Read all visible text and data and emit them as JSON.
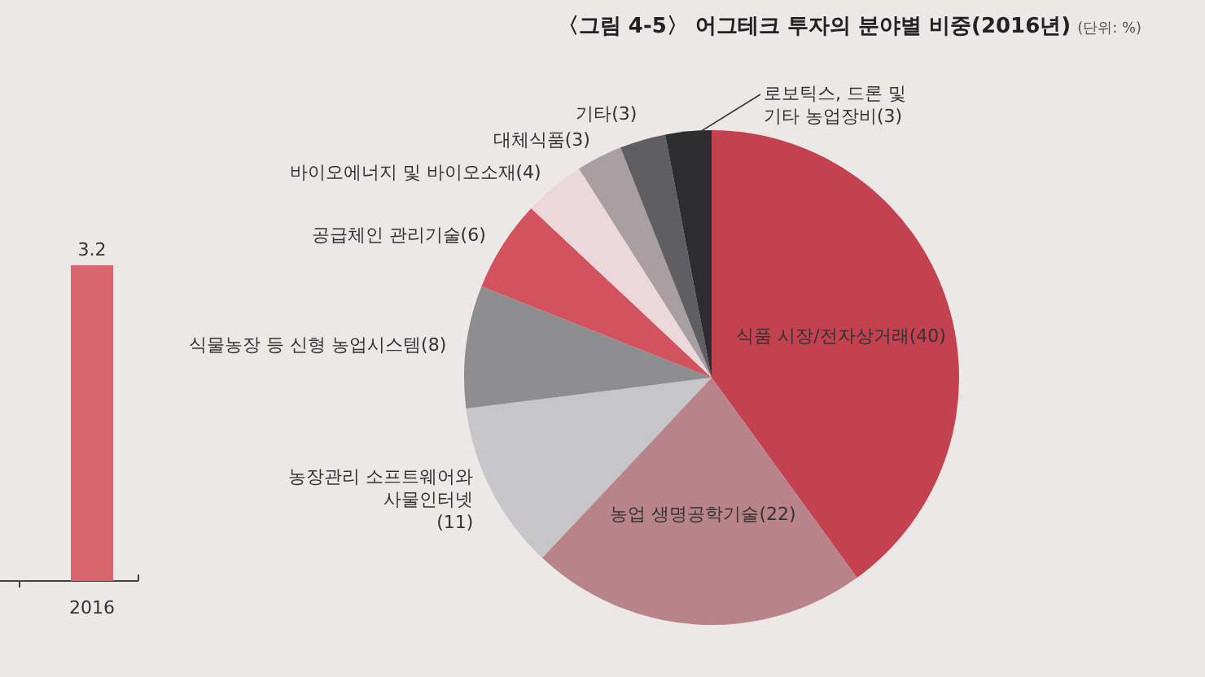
{
  "chart_data": [
    {
      "type": "bar",
      "categories": [
        "2016"
      ],
      "values": [
        3.2
      ],
      "color": "#d9656f",
      "data_labels": true
    },
    {
      "type": "pie",
      "title": "〈그림 4-5〉 어그테크 투자의 분야별 비중(2016년)",
      "subtitle": "(단위: %)",
      "value_labels": [
        "(40)",
        "(22)",
        "(11)",
        "(8)",
        "(6)",
        "(4)",
        "(3)",
        "(3)",
        "(3)"
      ],
      "categories": [
        "식품 시장/전자상거래",
        "농업 생명공학기술",
        "농장관리 소프트웨어와\n사물인터넷\n",
        "식물농장 등 신형 농업시스템",
        "공급체인 관리기술",
        "바이오에너지 및 바이오소재",
        "대체식품",
        "기타",
        "로보틱스, 드론 및\n기타 농업장비"
      ],
      "values": [
        40,
        22,
        11,
        8,
        6,
        4,
        3,
        3,
        3
      ],
      "colors": [
        "#c4414f",
        "#b9838b",
        "#c6c6c8",
        "#8e8e90",
        "#d2525e",
        "#ecd7db",
        "#a99ea1",
        "#5f5f62",
        "#2d2d30"
      ]
    }
  ]
}
